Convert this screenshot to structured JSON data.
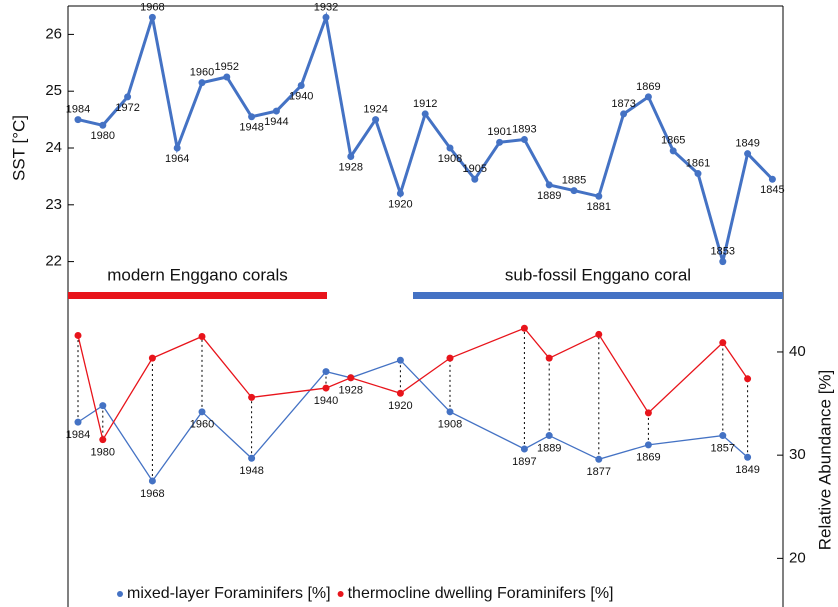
{
  "chart_data": [
    {
      "type": "line",
      "y_label": "SST [°C]",
      "categories": [
        "1984",
        "1980",
        "1972",
        "1968",
        "1964",
        "1960",
        "1952",
        "1948",
        "1944",
        "1940",
        "1932",
        "1928",
        "1924",
        "1920",
        "1912",
        "1908",
        "1905",
        "1901",
        "1893",
        "1889",
        "1885",
        "1881",
        "1873",
        "1869",
        "1865",
        "1861",
        "1853",
        "1849",
        "1845"
      ],
      "series": [
        {
          "name": "SST",
          "color": "#4472c4",
          "values": [
            24.5,
            24.4,
            24.9,
            26.3,
            24.0,
            25.15,
            25.25,
            24.55,
            24.65,
            25.1,
            26.3,
            23.85,
            24.5,
            23.2,
            24.6,
            24.0,
            23.45,
            24.1,
            24.15,
            23.35,
            23.25,
            23.15,
            24.6,
            24.9,
            23.95,
            23.55,
            22.0,
            23.9,
            23.45
          ]
        }
      ],
      "ylim": [
        21.5,
        26.5
      ],
      "yticks": [
        22,
        23,
        24,
        25,
        26
      ],
      "annotations": [
        {
          "text": "modern Enggano corals",
          "color": "#e8141b"
        },
        {
          "text": "sub-fossil Enggano coral",
          "color": "#4472c4"
        }
      ]
    },
    {
      "type": "line",
      "y_label": "Relative Abundance [%]",
      "categories": [
        "1984",
        "1980",
        "1968",
        "1960",
        "1948",
        "1940",
        "1928",
        "1920",
        "1908",
        "1897",
        "1889",
        "1877",
        "1869",
        "1857",
        "1849"
      ],
      "series": [
        {
          "name": "mixed-layer Foraminifers [%]",
          "color": "#4472c4",
          "values": [
            33.2,
            34.8,
            27.5,
            34.2,
            29.7,
            38.1,
            37.5,
            39.2,
            34.2,
            30.6,
            31.9,
            29.6,
            31.0,
            31.9,
            29.8
          ]
        },
        {
          "name": "thermocline dwelling Foraminifers [%]",
          "color": "#e8141b",
          "values": [
            41.6,
            31.5,
            39.4,
            41.5,
            35.6,
            36.5,
            37.5,
            36.0,
            39.4,
            42.3,
            39.4,
            41.7,
            34.1,
            40.9,
            37.4
          ]
        }
      ],
      "ylim": [
        18,
        43
      ],
      "yticks": [
        20,
        30,
        40
      ]
    }
  ]
}
